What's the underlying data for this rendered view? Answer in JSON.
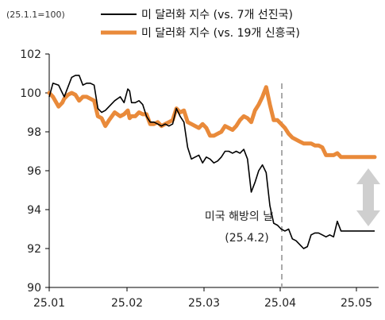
{
  "chart_data": {
    "type": "line",
    "unit_label": "(25.1.1=100)",
    "x_ticks": [
      "25.01",
      "25.02",
      "25.03",
      "25.04",
      "25.05"
    ],
    "ylim": [
      90,
      102
    ],
    "y_ticks": [
      90,
      92,
      94,
      96,
      98,
      100,
      102
    ],
    "grid": false,
    "legend_position": "top",
    "series": [
      {
        "name": "미 달러화 지수 (vs. 7개 선진국)",
        "color": "#000000",
        "x": [
          0,
          2,
          5,
          7,
          8,
          10,
          12,
          14,
          16,
          18,
          20,
          22,
          24,
          26,
          28,
          30,
          32,
          35,
          38,
          40,
          42,
          43,
          44,
          46,
          48,
          50,
          52,
          54,
          56,
          58,
          60,
          62,
          64,
          66,
          68,
          70,
          72,
          74,
          76,
          78,
          80,
          82,
          84,
          86,
          88,
          90,
          92,
          94,
          96,
          98,
          100,
          102,
          104,
          106,
          108,
          110,
          112,
          114,
          116,
          118,
          120,
          122,
          124,
          126,
          128,
          130,
          132,
          134,
          136,
          138,
          140,
          142,
          144,
          146,
          148,
          150,
          152,
          154,
          156,
          158,
          160,
          162,
          164,
          166,
          168,
          170,
          172,
          174
        ],
        "values": [
          99.8,
          100.5,
          100.4,
          100.0,
          99.8,
          100.3,
          100.8,
          100.9,
          100.9,
          100.4,
          100.5,
          100.5,
          100.4,
          99.2,
          99.0,
          99.1,
          99.3,
          99.6,
          99.8,
          99.5,
          100.2,
          100.1,
          99.5,
          99.5,
          99.6,
          99.4,
          98.8,
          98.5,
          98.5,
          98.4,
          98.3,
          98.4,
          98.3,
          98.4,
          99.2,
          98.8,
          98.5,
          97.2,
          96.6,
          96.7,
          96.8,
          96.4,
          96.7,
          96.6,
          96.4,
          96.5,
          96.7,
          97.0,
          97.0,
          96.9,
          97.0,
          96.9,
          97.1,
          96.6,
          94.9,
          95.4,
          96.0,
          96.3,
          95.9,
          94.2,
          93.3,
          93.2,
          93.0,
          92.9,
          93.0,
          92.5,
          92.4,
          92.2,
          92.0,
          92.1,
          92.7,
          92.8,
          92.8,
          92.7,
          92.6,
          92.7,
          92.6,
          93.4,
          92.9,
          92.9,
          92.9,
          92.9,
          92.9,
          92.9,
          92.9,
          92.9,
          92.9,
          92.9
        ]
      },
      {
        "name": "미 달러화 지수 (vs. 19개 신흥국)",
        "color": "#e98a3a",
        "x": [
          0,
          2,
          5,
          7,
          8,
          10,
          12,
          14,
          16,
          18,
          20,
          22,
          24,
          26,
          28,
          30,
          32,
          35,
          38,
          40,
          42,
          43,
          44,
          46,
          48,
          50,
          52,
          54,
          56,
          58,
          60,
          62,
          64,
          66,
          68,
          70,
          72,
          74,
          76,
          78,
          80,
          82,
          84,
          86,
          88,
          90,
          92,
          94,
          96,
          98,
          100,
          102,
          104,
          106,
          108,
          110,
          112,
          114,
          116,
          118,
          120,
          122,
          124,
          126,
          128,
          130,
          132,
          134,
          136,
          138,
          140,
          142,
          144,
          146,
          148,
          150,
          152,
          154,
          156,
          158,
          160,
          162,
          164,
          166,
          168,
          170,
          172,
          174
        ],
        "values": [
          100.0,
          99.8,
          99.3,
          99.5,
          99.7,
          99.9,
          100.0,
          99.9,
          99.6,
          99.8,
          99.8,
          99.7,
          99.6,
          98.8,
          98.7,
          98.3,
          98.6,
          99.0,
          98.8,
          98.9,
          99.1,
          98.7,
          98.8,
          98.8,
          99.0,
          98.9,
          98.9,
          98.4,
          98.4,
          98.5,
          98.3,
          98.4,
          98.5,
          98.6,
          99.2,
          99.0,
          99.1,
          98.5,
          98.4,
          98.3,
          98.2,
          98.4,
          98.2,
          97.8,
          97.8,
          97.9,
          98.0,
          98.3,
          98.2,
          98.1,
          98.3,
          98.6,
          98.8,
          98.7,
          98.5,
          99.1,
          99.4,
          99.8,
          100.3,
          99.4,
          98.6,
          98.6,
          98.4,
          98.2,
          97.9,
          97.7,
          97.6,
          97.5,
          97.4,
          97.4,
          97.4,
          97.3,
          97.3,
          97.2,
          96.8,
          96.8,
          96.8,
          96.9,
          96.7,
          96.7,
          96.7,
          96.7,
          96.7,
          96.7,
          96.7,
          96.7,
          96.7,
          96.7
        ]
      }
    ],
    "annotation": {
      "text_line1": "미국 해방의 날",
      "text_line2": "(25.4.2)"
    }
  }
}
